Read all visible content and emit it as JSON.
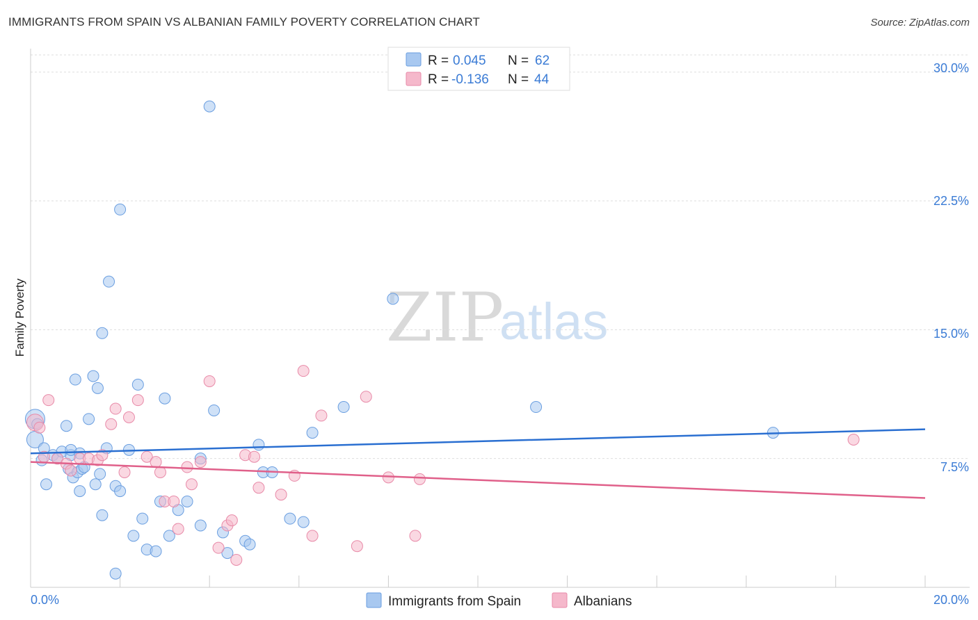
{
  "header": {
    "title": "IMMIGRANTS FROM SPAIN VS ALBANIAN FAMILY POVERTY CORRELATION CHART",
    "source": "Source: ZipAtlas.com"
  },
  "watermark": {
    "zip": "ZIP",
    "atlas": "atlas"
  },
  "legend_top": {
    "rows": [
      {
        "r_label": "R =",
        "r_value": "0.045",
        "n_label": "N =",
        "n_value": "62",
        "color": "#a8c8f0"
      },
      {
        "r_label": "R =",
        "r_value": "-0.136",
        "n_label": "N =",
        "n_value": "44",
        "color": "#f5b8cb"
      }
    ]
  },
  "legend_bottom": {
    "items": [
      {
        "label": "Immigrants from Spain",
        "color": "#a8c8f0"
      },
      {
        "label": "Albanians",
        "color": "#f5b8cb"
      }
    ]
  },
  "chart_data": {
    "type": "scatter",
    "title": "IMMIGRANTS FROM SPAIN VS ALBANIAN FAMILY POVERTY CORRELATION CHART",
    "xlabel": "",
    "ylabel": "Family Poverty",
    "xlim": [
      0,
      20
    ],
    "ylim": [
      0,
      31
    ],
    "x_tick_labels": [
      "0.0%",
      "20.0%"
    ],
    "y_ticks": [
      7.5,
      15.0,
      22.5,
      30.0
    ],
    "y_tick_labels": [
      "7.5%",
      "15.0%",
      "22.5%",
      "30.0%"
    ],
    "grid": true,
    "series": [
      {
        "name": "Immigrants from Spain",
        "color": "#a8c8f0",
        "stroke": "#6a9ee0",
        "line_color": "#2a6fd1",
        "trend": [
          [
            0,
            7.8
          ],
          [
            20,
            9.2
          ]
        ],
        "points": [
          [
            0.1,
            9.8
          ],
          [
            0.1,
            8.6
          ],
          [
            0.15,
            9.5
          ],
          [
            0.25,
            7.4
          ],
          [
            0.3,
            8.1
          ],
          [
            0.35,
            6.0
          ],
          [
            0.5,
            7.7
          ],
          [
            0.6,
            7.5
          ],
          [
            0.7,
            7.9
          ],
          [
            0.8,
            9.4
          ],
          [
            0.85,
            6.9
          ],
          [
            0.9,
            7.7
          ],
          [
            0.9,
            8.0
          ],
          [
            0.95,
            6.4
          ],
          [
            1.05,
            6.7
          ],
          [
            1.0,
            12.1
          ],
          [
            1.1,
            5.6
          ],
          [
            1.15,
            6.9
          ],
          [
            1.2,
            7.0
          ],
          [
            1.3,
            9.8
          ],
          [
            1.4,
            12.3
          ],
          [
            1.5,
            11.6
          ],
          [
            1.6,
            14.8
          ],
          [
            1.7,
            8.1
          ],
          [
            1.75,
            17.8
          ],
          [
            1.9,
            5.9
          ],
          [
            2.0,
            22.0
          ],
          [
            2.2,
            8.0
          ],
          [
            2.4,
            11.8
          ],
          [
            1.1,
            7.8
          ],
          [
            1.55,
            6.6
          ],
          [
            1.45,
            6.0
          ],
          [
            1.6,
            4.2
          ],
          [
            2.0,
            5.6
          ],
          [
            2.3,
            3.0
          ],
          [
            2.5,
            4.0
          ],
          [
            2.6,
            2.2
          ],
          [
            2.8,
            2.1
          ],
          [
            2.9,
            5.0
          ],
          [
            3.0,
            11.0
          ],
          [
            3.3,
            4.5
          ],
          [
            3.5,
            5.0
          ],
          [
            3.8,
            3.6
          ],
          [
            4.0,
            28.0
          ],
          [
            4.1,
            10.3
          ],
          [
            4.3,
            3.2
          ],
          [
            4.4,
            2.0
          ],
          [
            4.8,
            2.7
          ],
          [
            4.9,
            2.5
          ],
          [
            5.1,
            8.3
          ],
          [
            5.2,
            6.7
          ],
          [
            5.4,
            6.7
          ],
          [
            5.8,
            4.0
          ],
          [
            6.1,
            3.8
          ],
          [
            6.3,
            9.0
          ],
          [
            7.0,
            10.5
          ],
          [
            8.1,
            16.8
          ],
          [
            11.3,
            10.5
          ],
          [
            16.6,
            9.0
          ],
          [
            1.9,
            0.8
          ],
          [
            3.8,
            7.5
          ],
          [
            3.1,
            3.0
          ]
        ]
      },
      {
        "name": "Albanians",
        "color": "#f5b8cb",
        "stroke": "#e88aa8",
        "line_color": "#e0608a",
        "trend": [
          [
            0,
            7.3
          ],
          [
            20,
            5.2
          ]
        ],
        "points": [
          [
            0.1,
            9.6
          ],
          [
            0.2,
            9.3
          ],
          [
            0.3,
            7.6
          ],
          [
            0.4,
            10.9
          ],
          [
            0.6,
            7.5
          ],
          [
            0.8,
            7.2
          ],
          [
            0.9,
            6.8
          ],
          [
            1.1,
            7.5
          ],
          [
            1.3,
            7.5
          ],
          [
            1.5,
            7.4
          ],
          [
            1.6,
            7.7
          ],
          [
            1.8,
            9.5
          ],
          [
            1.9,
            10.4
          ],
          [
            2.1,
            6.7
          ],
          [
            2.2,
            9.9
          ],
          [
            2.4,
            10.9
          ],
          [
            2.6,
            7.6
          ],
          [
            2.8,
            7.3
          ],
          [
            2.9,
            6.7
          ],
          [
            3.0,
            5.0
          ],
          [
            3.2,
            5.0
          ],
          [
            3.3,
            3.4
          ],
          [
            3.5,
            7.0
          ],
          [
            3.6,
            6.0
          ],
          [
            3.8,
            7.3
          ],
          [
            4.0,
            12.0
          ],
          [
            4.2,
            2.3
          ],
          [
            4.4,
            3.6
          ],
          [
            4.5,
            3.9
          ],
          [
            4.6,
            1.6
          ],
          [
            4.8,
            7.7
          ],
          [
            5.0,
            7.6
          ],
          [
            5.1,
            5.8
          ],
          [
            5.6,
            5.4
          ],
          [
            5.9,
            6.5
          ],
          [
            6.1,
            12.6
          ],
          [
            6.3,
            3.0
          ],
          [
            6.5,
            10.0
          ],
          [
            7.3,
            2.4
          ],
          [
            7.5,
            11.1
          ],
          [
            8.0,
            6.4
          ],
          [
            8.6,
            3.0
          ],
          [
            8.7,
            6.3
          ],
          [
            18.4,
            8.6
          ]
        ]
      }
    ]
  }
}
